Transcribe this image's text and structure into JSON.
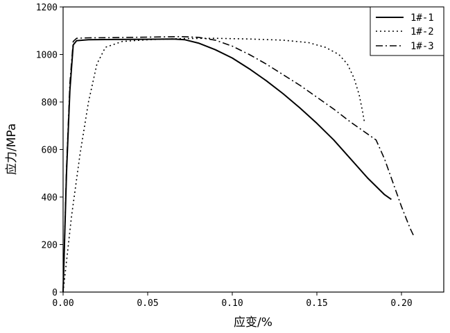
{
  "chart_data": {
    "type": "line",
    "xlabel": "应变/%",
    "ylabel": "应力/MPa",
    "xlim": [
      0,
      0.225
    ],
    "ylim": [
      0,
      1200
    ],
    "x_ticks": [
      0,
      0.05,
      0.1,
      0.15,
      0.2
    ],
    "x_tick_labels": [
      "0.00",
      "0.05",
      "0.10",
      "0.15",
      "0.20"
    ],
    "y_ticks": [
      0,
      200,
      400,
      600,
      800,
      1000,
      1200
    ],
    "y_tick_labels": [
      "0",
      "200",
      "400",
      "600",
      "800",
      "1000",
      "1200"
    ],
    "grid": false,
    "legend_position": "top-right",
    "series": [
      {
        "name": "1#-1",
        "style": "solid",
        "color": "#000000",
        "points": [
          [
            0,
            0
          ],
          [
            0.002,
            500
          ],
          [
            0.004,
            850
          ],
          [
            0.006,
            1040
          ],
          [
            0.008,
            1058
          ],
          [
            0.015,
            1062
          ],
          [
            0.03,
            1063
          ],
          [
            0.05,
            1064
          ],
          [
            0.065,
            1065
          ],
          [
            0.072,
            1062
          ],
          [
            0.08,
            1048
          ],
          [
            0.09,
            1020
          ],
          [
            0.1,
            985
          ],
          [
            0.11,
            940
          ],
          [
            0.12,
            890
          ],
          [
            0.13,
            835
          ],
          [
            0.14,
            775
          ],
          [
            0.15,
            710
          ],
          [
            0.16,
            640
          ],
          [
            0.17,
            560
          ],
          [
            0.18,
            480
          ],
          [
            0.19,
            410
          ],
          [
            0.194,
            390
          ]
        ]
      },
      {
        "name": "1#-2",
        "style": "dotted",
        "color": "#000000",
        "points": [
          [
            0,
            0
          ],
          [
            0.005,
            320
          ],
          [
            0.01,
            580
          ],
          [
            0.015,
            800
          ],
          [
            0.02,
            960
          ],
          [
            0.025,
            1030
          ],
          [
            0.035,
            1055
          ],
          [
            0.05,
            1062
          ],
          [
            0.07,
            1067
          ],
          [
            0.09,
            1068
          ],
          [
            0.11,
            1065
          ],
          [
            0.13,
            1060
          ],
          [
            0.145,
            1050
          ],
          [
            0.155,
            1030
          ],
          [
            0.163,
            1000
          ],
          [
            0.168,
            960
          ],
          [
            0.172,
            900
          ],
          [
            0.175,
            830
          ],
          [
            0.177,
            760
          ],
          [
            0.178,
            720
          ]
        ]
      },
      {
        "name": "1#-3",
        "style": "dashdot",
        "color": "#000000",
        "points": [
          [
            0,
            0
          ],
          [
            0.002,
            520
          ],
          [
            0.004,
            880
          ],
          [
            0.006,
            1055
          ],
          [
            0.008,
            1068
          ],
          [
            0.015,
            1070
          ],
          [
            0.03,
            1071
          ],
          [
            0.05,
            1073
          ],
          [
            0.07,
            1075
          ],
          [
            0.08,
            1072
          ],
          [
            0.09,
            1060
          ],
          [
            0.1,
            1035
          ],
          [
            0.11,
            1000
          ],
          [
            0.12,
            960
          ],
          [
            0.13,
            915
          ],
          [
            0.14,
            870
          ],
          [
            0.15,
            820
          ],
          [
            0.16,
            770
          ],
          [
            0.17,
            715
          ],
          [
            0.18,
            665
          ],
          [
            0.185,
            640
          ],
          [
            0.19,
            560
          ],
          [
            0.195,
            460
          ],
          [
            0.2,
            360
          ],
          [
            0.205,
            270
          ],
          [
            0.207,
            240
          ]
        ]
      }
    ]
  }
}
